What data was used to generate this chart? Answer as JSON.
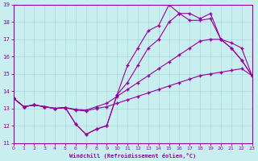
{
  "xlabel": "Windchill (Refroidissement éolien,°C)",
  "xlim": [
    0,
    23
  ],
  "ylim": [
    11,
    19
  ],
  "xticks": [
    0,
    1,
    2,
    3,
    4,
    5,
    6,
    7,
    8,
    9,
    10,
    11,
    12,
    13,
    14,
    15,
    16,
    17,
    18,
    19,
    20,
    21,
    22,
    23
  ],
  "yticks": [
    11,
    12,
    13,
    14,
    15,
    16,
    17,
    18,
    19
  ],
  "bg_color": "#c8eef0",
  "line_color": "#990099",
  "grid_color": "#a8d8d8",
  "lines": [
    {
      "x": [
        0,
        1,
        2,
        3,
        4,
        5,
        6,
        7,
        8,
        9,
        10,
        11,
        12,
        13,
        14,
        15,
        16,
        17,
        18,
        19,
        20,
        21,
        22,
        23
      ],
      "y": [
        13.6,
        13.1,
        13.2,
        13.1,
        13.0,
        13.05,
        12.9,
        12.85,
        13.0,
        13.1,
        13.3,
        13.5,
        13.7,
        13.9,
        14.1,
        14.3,
        14.5,
        14.7,
        14.9,
        15.0,
        15.1,
        15.2,
        15.3,
        14.9
      ]
    },
    {
      "x": [
        0,
        1,
        2,
        3,
        4,
        5,
        6,
        7,
        8,
        9,
        10,
        11,
        12,
        13,
        14,
        15,
        16,
        17,
        18,
        19,
        20,
        21,
        22,
        23
      ],
      "y": [
        13.6,
        13.1,
        13.2,
        13.1,
        13.0,
        13.05,
        12.95,
        12.9,
        13.1,
        13.3,
        13.7,
        14.1,
        14.5,
        14.9,
        15.3,
        15.7,
        16.1,
        16.5,
        16.9,
        17.0,
        17.0,
        16.8,
        16.5,
        14.9
      ]
    },
    {
      "x": [
        0,
        1,
        2,
        3,
        4,
        5,
        6,
        7,
        8,
        9,
        10,
        11,
        12,
        13,
        14,
        15,
        16,
        17,
        18,
        19,
        20,
        21,
        22,
        23
      ],
      "y": [
        13.6,
        13.1,
        13.2,
        13.1,
        13.0,
        13.05,
        12.1,
        11.5,
        11.8,
        12.0,
        13.8,
        14.5,
        15.5,
        16.5,
        17.0,
        18.0,
        18.5,
        18.1,
        18.1,
        18.2,
        17.0,
        16.5,
        15.8,
        14.9
      ]
    },
    {
      "x": [
        0,
        1,
        2,
        3,
        4,
        5,
        6,
        7,
        8,
        9,
        10,
        11,
        12,
        13,
        14,
        15,
        16,
        17,
        18,
        19,
        20,
        21,
        22,
        23
      ],
      "y": [
        13.6,
        13.1,
        13.2,
        13.1,
        13.0,
        13.05,
        12.1,
        11.5,
        11.8,
        12.0,
        13.8,
        15.5,
        16.5,
        17.5,
        17.8,
        19.0,
        18.5,
        18.5,
        18.2,
        18.5,
        17.0,
        16.5,
        15.8,
        14.9
      ]
    }
  ]
}
